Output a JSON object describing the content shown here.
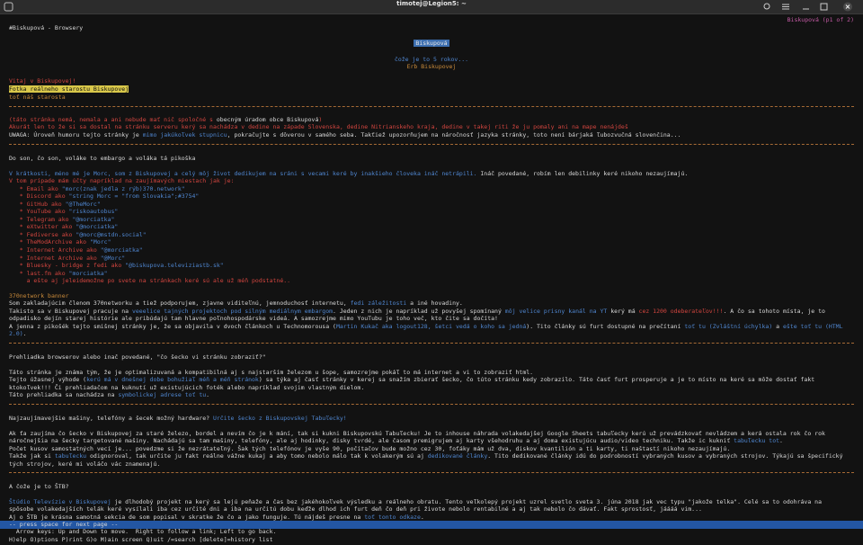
{
  "window": {
    "title": "timotej@Legion5: ~"
  },
  "screen": {
    "lines": [
      [
        "Biskupová (p1 of 2)"
      ],
      [
        "#Biskupová - Browsery"
      ],
      [
        "Biskupová"
      ],
      [
        "čože je to 5 rokov..."
      ],
      [
        "Erb Biskupovej"
      ],
      [
        "Vitaj v Biskupovej!"
      ],
      [
        "Fotka reálneho starostu Biskupovej"
      ],
      [
        "toť náš starosta"
      ],
      [
        "(táto stránka nemá, nemala a ani nebude mať nič spoločné s ",
        "obecným úradom obce Biskupová",
        ")"
      ],
      [
        "Akurát len to že si sa dostal na stránku serveru kerý sa nachádza v dedine na západe Slovenska, dedine Nitrianskeho kraja, dedine v takej riti že ju pomaly ani na mape nenájdeš"
      ],
      [
        "UWAGA: Úroveň humoru tejto stránky je ",
        "mimo jakúkoľvek stupnicu",
        ", pokračujte s dôverou v samého seba. Takťiež upozorňujem na náročnosť jazyka stránky, toto není bárjaká ľubozvučná slovenčina..."
      ],
      [
        "Do son, čo son, voláke to embargo a voláka tá pikoška"
      ],
      [
        "V krátkosti, méno mé je Morc, som z Biskupovej a celý môj život dedikujem na sráni s vecami keré by inakšieho človeka ináč netrápili.",
        " Ináč povedané, robím len debilinky keré nikoho nezaujímajú."
      ],
      [
        "V tom prípade mám účty napríklad na zaujímavých miestach jak je:"
      ],
      [
        "   * Email ako ",
        "\"morc(znak jedla z rýb)370.network\""
      ],
      [
        "   * Discord ako ",
        "\"string Morc = \"from Slovakia\";#3754\""
      ],
      [
        "   * GitHub ako ",
        "\"@TheMorc\""
      ],
      [
        "   * YouTube ako ",
        "\"riskoautobus\""
      ],
      [
        "   * Telegram ako ",
        "\"@morciatka\""
      ],
      [
        "   * eXtwitter ako ",
        "\"@morciatka\""
      ],
      [
        "   * Fediverse ako ",
        "\"@morc@mstdn.social\""
      ],
      [
        "   * TheModArchive ako ",
        "\"Morc\""
      ],
      [
        "   * Internet Archive ako ",
        "\"@morciatka\""
      ],
      [
        "   * Internet Archive ako ",
        "\"@Morc\""
      ],
      [
        "   * Bluesky - bridge z fedi ako ",
        "\"@biskupova.televiziastb.sk\""
      ],
      [
        "   * last.fm ako ",
        "\"morciatka\""
      ],
      [
        "     a ešte aj jeleidemožne po svete na stránkach keré sú ale už méň podstatné.."
      ],
      [
        "370network banner"
      ],
      [
        "Som zakladajúcim členom 370networku a tiež podporujem, zjavne viditeľnú, jemnoduchosť internetu, ",
        "fedi záležitosti",
        " a iné hovadiny."
      ],
      [
        "Takisto sa v Biskupovej pracuje na ",
        "veeelice tajných projektoch pod silným mediálnym embargom",
        ". Jeden z nich je napríklad už povyšej spomínaný ",
        "môj velice prisny kanál na YT",
        " kerý má ",
        "cez 1200 odeberateľov!!!",
        ". A čo sa tohoto místa, je to"
      ],
      [
        "odpadisko dejín starej histórie ale pribúdajú tam hlavne poľnohospodárske videá. A samozrejme mimo YouTubu je toho več, kto čite sa dočíta!"
      ],
      [
        "A jenna z pikošék tejto smišnej stránky je, že sa objavila v dvoch článkoch u Technomorousa (",
        "Martin Kukač aka logout128, šetci vedá o koho sa jedná",
        "). Tito články sú furt dostupné na prečítaní ",
        "toť tu (Zvláštní úchylka)",
        " a ",
        "ešte toť tu (HTML"
      ],
      [
        "2.0)",
        "."
      ],
      [
        "Prehliadka browserov alebo inač povedané, \"čo šecko vi stránku zobraziť?\""
      ],
      [
        "Táto stránka je známa tým, že je optimalizuvaná a kompatibilná aj s najstarším železom u šope, samozrejme pokáľ to má internet a vi to zobraziť html."
      ],
      [
        "Tejto úžasnej výhode (",
        "kerú má v dnešnej dobe bohužiaľ méň a méň stránok",
        ") sa týka aj časť stránky v kerej sa snažím zbierať šecko, čo túto stránku kedy zobrazilo. Táto časť furt prosperuje a je to místo na keré sa môže dostať fakt"
      ],
      [
        "ktokoľvek!!! Či prehliadačom na kuknutí už existujúcich foték alebo napríklad svojim vlastným dielom."
      ],
      [
        "Táto prehliadka sa nachádza na ",
        "symbolickej adrese toť tu",
        "."
      ],
      [
        "Najzaujímavejšie mašiny, telefóny a šecek možný hardware? ",
        "Určite šecko z Biskupovskej Tabuľecky!"
      ],
      [
        "Ak ťa zaujíma čo šecko v Biskupovej za staré železo, bordel a nevím čo je k mání, tak si kukni Biskupovskú Tabuľecku! Je to inhouse náhrada volakedajšej Google Sheets tabuľecky kerú už prevádzkovať nevládzem a kerá ostala rok čo rok"
      ],
      [
        "náročnejšia na šecky targetované mašiny. Nachádajú sa tam mašiny, telefóny, ale aj hodinky, disky tvrdé, ale časom premigrujem aj karty všehodruhu a aj doma existujúcu audio/video techniku. Takže ic kukniť ",
        "tabuľecku tot",
        "."
      ],
      [
        "Počet kusov samostatných vecí je... povedzme si že nezrátateľný. Šak tých telefónov je vyše 90, počítačov bude možno cez 30, foťáky mám už dva, diskov kvantilión a ti karty, ti naštastí nikoho nezaujímajú."
      ],
      [
        "Takže jak si ",
        "tabuľecku",
        " odignoroval, tak určite ju fakt reálne vážne kukaj a aby tomo nebolo málo tak k volakerým sú aj ",
        "dedikované články",
        ". Tito dedikované články idú do podrobností vybraných kusov a vybraných strojov. Týkajú sa špecifický"
      ],
      [
        "tých strojov, keré mi voláčo vác znamenajú."
      ],
      [
        "A čože je to ŠTB?"
      ],
      [
        "Štúdio Televízie v Biskupovej",
        " je dlhodobý projekt na kerý sa lejú peňaže a čas bez jakéhokoľvek výsledku a reálneho obratu. Tento veľkolepý projekt uzrel svetlo sveta 3. júna 2018 jak vec typu \"jakože telka\". Celé sa to odohráva na"
      ],
      [
        "spôsobe volakedajších telák keré vysílali iba cez určité dni a iba na určitú dobu keďže dlhod ich furt deň čo deň pri živote nebolo rentabilné a aj tak nebolo čo dávať. Fakt sprostosť, jáááá vim..."
      ],
      [
        "Aj o ŠTB je krásna samotná sekcia de som popisal v skratke že čo a jako funguje. Tú nájdeš presne na ",
        "toť tonto odkaze",
        "."
      ],
      [
        "-- press space for next page --"
      ],
      [
        "  Arrow keys: Up and Down to move.  Right to follow a link; Left to go back."
      ],
      [
        "H)elp O)ptions P)rint G)o M)ain screen Q)uit /=search [delete]=history list"
      ]
    ]
  }
}
